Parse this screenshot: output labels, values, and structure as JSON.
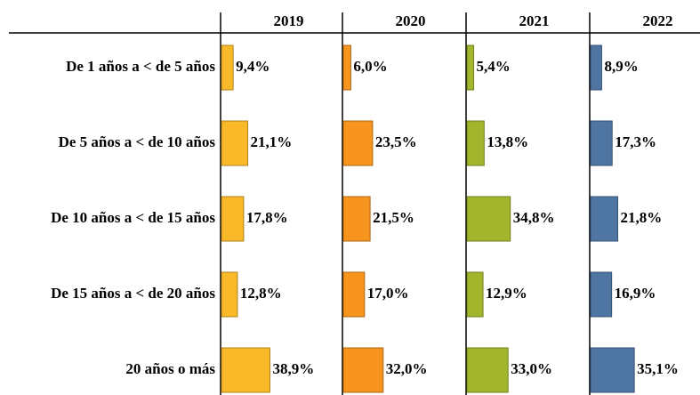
{
  "chart_data": {
    "type": "bar",
    "categories": [
      "De 1 años a < de 5 años",
      "De 5 años a < de 10 años",
      "De 10 años a < de 15 años",
      "De 15 años a < de 20 años",
      "20 años o más"
    ],
    "series": [
      {
        "name": "2019",
        "color": "#f9b928",
        "values": [
          9.4,
          21.1,
          17.8,
          12.8,
          38.9
        ],
        "value_labels": [
          "9,4%",
          "21,1%",
          "17,8%",
          "12,8%",
          "38,9%"
        ]
      },
      {
        "name": "2020",
        "color": "#f7941d",
        "values": [
          6.0,
          23.5,
          21.5,
          17.0,
          32.0
        ],
        "value_labels": [
          "6,0%",
          "23,5%",
          "21,5%",
          "17,0%",
          "32,0%"
        ]
      },
      {
        "name": "2021",
        "color": "#a2b52c",
        "values": [
          5.4,
          13.8,
          34.8,
          12.9,
          33.0
        ],
        "value_labels": [
          "5,4%",
          "13,8%",
          "34,8%",
          "12,9%",
          "33,0%"
        ]
      },
      {
        "name": "2022",
        "color": "#4f76a3",
        "values": [
          8.9,
          17.3,
          21.8,
          16.9,
          35.1
        ],
        "value_labels": [
          "8,9%",
          "17,3%",
          "21,8%",
          "16,9%",
          "35,1%"
        ]
      }
    ]
  }
}
